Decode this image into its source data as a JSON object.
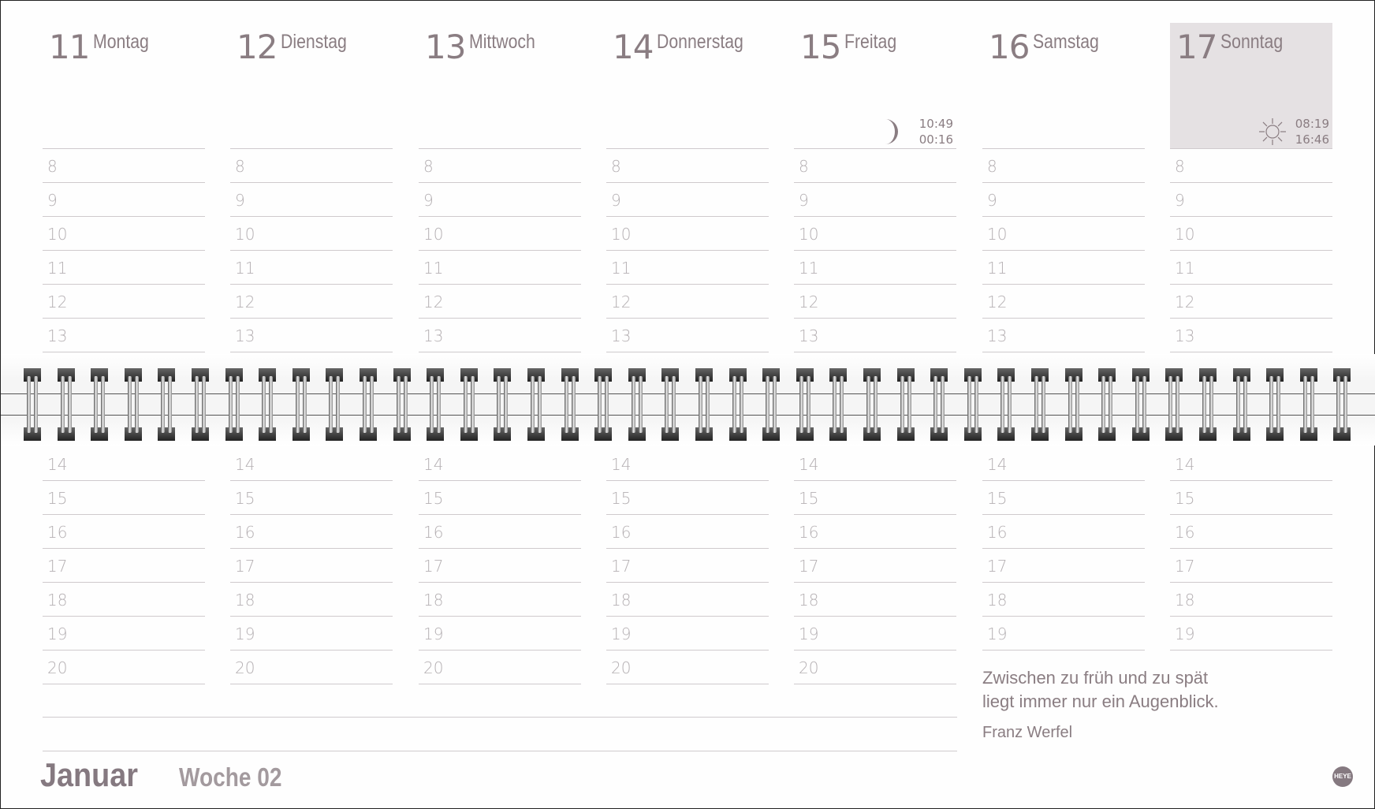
{
  "days": [
    {
      "number": "11",
      "name": "Montag"
    },
    {
      "number": "12",
      "name": "Dienstag"
    },
    {
      "number": "13",
      "name": "Mittwoch"
    },
    {
      "number": "14",
      "name": "Donnerstag"
    },
    {
      "number": "15",
      "name": "Freitag",
      "moon": {
        "icon": "moon-icon",
        "time1": "10:49",
        "time2": "00:16"
      }
    },
    {
      "number": "16",
      "name": "Samstag"
    },
    {
      "number": "17",
      "name": "Sonntag",
      "sun": {
        "icon": "sun-icon",
        "sunrise": "08:19",
        "sunset": "16:46"
      },
      "highlight": "#e5e1e3"
    }
  ],
  "hours_morning": [
    "8",
    "9",
    "10",
    "11",
    "12",
    "13"
  ],
  "hours_afternoon": [
    "14",
    "15",
    "16",
    "17",
    "18",
    "19",
    "20"
  ],
  "hours_afternoon_weekend": [
    "14",
    "15",
    "16",
    "17",
    "18",
    "19"
  ],
  "quote": {
    "line1": "Zwischen zu früh und zu spät",
    "line2": "liegt immer nur ein Augenblick.",
    "author": "Franz Werfel"
  },
  "footer": {
    "month": "Januar",
    "week": "Woche 02",
    "logo": "HEYE"
  },
  "colors": {
    "text": "#8a7d82",
    "hours": "#b5b0b3",
    "lines": "#cfcacd",
    "sunday_bg": "#e5e1e3"
  }
}
